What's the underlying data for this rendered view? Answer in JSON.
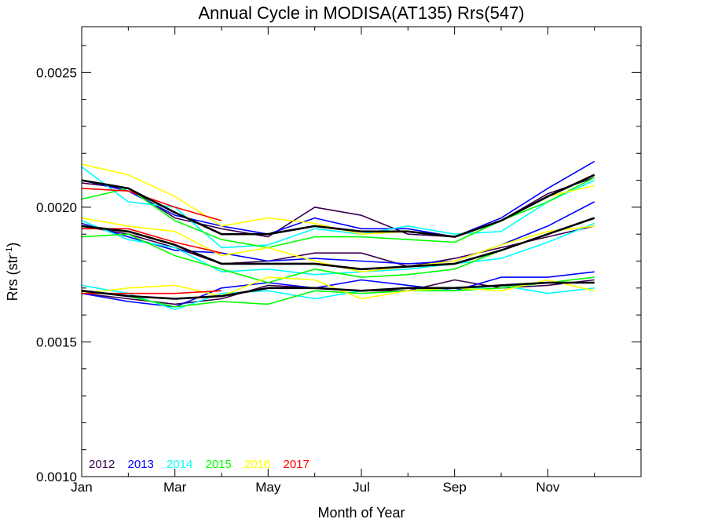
{
  "chart_data": {
    "type": "line",
    "title": "Annual Cycle in MODISA(AT135) Rrs(547)",
    "xlabel": "Month of Year",
    "ylabel_base": "Rrs (str",
    "ylabel_sup": "-1",
    "ylabel_end": ")",
    "xlim": [
      1,
      13
    ],
    "ylim": [
      0.001,
      0.00267
    ],
    "x_ticks": [
      {
        "value": 1,
        "label": "Jan"
      },
      {
        "value": 3,
        "label": "Mar"
      },
      {
        "value": 5,
        "label": "May"
      },
      {
        "value": 7,
        "label": "Jul"
      },
      {
        "value": 9,
        "label": "Sep"
      },
      {
        "value": 11,
        "label": "Nov"
      }
    ],
    "y_ticks": [
      {
        "value": 0.001,
        "label": "0.0010"
      },
      {
        "value": 0.0015,
        "label": "0.0015"
      },
      {
        "value": 0.002,
        "label": "0.0020"
      },
      {
        "value": 0.0025,
        "label": "0.0025"
      }
    ],
    "legend_position": "bottom-left",
    "x": [
      1,
      2,
      3,
      4,
      5,
      6,
      7,
      8,
      9,
      10,
      11,
      12
    ],
    "series": [
      {
        "name": "2012",
        "color": "#3a0050",
        "values": [
          0.00209,
          0.00207,
          0.00196,
          0.00192,
          0.00189,
          0.002,
          0.00197,
          0.0019,
          0.00189,
          0.00195,
          0.00205,
          0.00211
        ]
      },
      {
        "name": "2012",
        "color": "#3a0050",
        "values": [
          0.00193,
          0.0019,
          0.00185,
          0.00179,
          0.0018,
          0.00183,
          0.00183,
          0.00178,
          0.00181,
          0.00185,
          0.00189,
          0.00193
        ]
      },
      {
        "name": "2012",
        "color": "#3a0050",
        "values": [
          0.00168,
          0.00166,
          0.00164,
          0.00166,
          0.00171,
          0.0017,
          0.00169,
          0.00169,
          0.00173,
          0.0017,
          0.00171,
          0.00173
        ]
      },
      {
        "name": "2013",
        "color": "#0000ff",
        "values": [
          0.0021,
          0.00206,
          0.00197,
          0.00193,
          0.0019,
          0.00196,
          0.00192,
          0.00192,
          0.00189,
          0.00196,
          0.00207,
          0.00217
        ]
      },
      {
        "name": "2013",
        "color": "#0000ff",
        "values": [
          0.00194,
          0.00189,
          0.00184,
          0.00183,
          0.0018,
          0.00181,
          0.0018,
          0.00179,
          0.0018,
          0.00186,
          0.00193,
          0.00202
        ]
      },
      {
        "name": "2013",
        "color": "#0000ff",
        "values": [
          0.00168,
          0.00165,
          0.00163,
          0.0017,
          0.00172,
          0.0017,
          0.00173,
          0.00171,
          0.00169,
          0.00174,
          0.00174,
          0.00176
        ]
      },
      {
        "name": "2014",
        "color": "#00ffff",
        "values": [
          0.00215,
          0.00202,
          0.002,
          0.00185,
          0.00186,
          0.00192,
          0.0019,
          0.00193,
          0.0019,
          0.00191,
          0.00202,
          0.0021
        ]
      },
      {
        "name": "2014",
        "color": "#00ffff",
        "values": [
          0.00195,
          0.00188,
          0.00185,
          0.00176,
          0.00177,
          0.00175,
          0.00176,
          0.00177,
          0.00179,
          0.00181,
          0.00187,
          0.00194
        ]
      },
      {
        "name": "2014",
        "color": "#00ffff",
        "values": [
          0.00171,
          0.00168,
          0.00162,
          0.00168,
          0.00169,
          0.00166,
          0.00169,
          0.0017,
          0.00169,
          0.00171,
          0.00168,
          0.0017
        ]
      },
      {
        "name": "2015",
        "color": "#00ff00",
        "values": [
          0.00203,
          0.00207,
          0.00195,
          0.00188,
          0.00185,
          0.00189,
          0.00189,
          0.00188,
          0.00187,
          0.00195,
          0.00202,
          0.00211
        ]
      },
      {
        "name": "2015",
        "color": "#00ff00",
        "values": [
          0.00189,
          0.0019,
          0.00182,
          0.00177,
          0.00172,
          0.00177,
          0.00174,
          0.00175,
          0.00177,
          0.00184,
          0.0019,
          0.00196
        ]
      },
      {
        "name": "2015",
        "color": "#00ff00",
        "values": [
          0.00169,
          0.00167,
          0.00163,
          0.00165,
          0.00164,
          0.00169,
          0.00168,
          0.00169,
          0.00169,
          0.0017,
          0.00172,
          0.00174
        ]
      },
      {
        "name": "2016",
        "color": "#ffff00",
        "values": [
          0.00216,
          0.00212,
          0.00204,
          0.00193,
          0.00196,
          0.00194,
          0.0019,
          0.00191,
          0.00189,
          0.00195,
          0.00204,
          0.00208
        ]
      },
      {
        "name": "2016",
        "color": "#ffff00",
        "values": [
          0.00196,
          0.00193,
          0.00191,
          0.00182,
          0.00185,
          0.0018,
          0.00176,
          0.00178,
          0.0018,
          0.00186,
          0.00191,
          0.00193
        ]
      },
      {
        "name": "2016",
        "color": "#ffff00",
        "values": [
          0.00168,
          0.0017,
          0.00171,
          0.00167,
          0.00174,
          0.00173,
          0.00166,
          0.00169,
          0.0017,
          0.00169,
          0.00173,
          0.00169
        ]
      },
      {
        "name": "2017",
        "color": "#ff0000",
        "values": [
          0.00207,
          0.00206,
          0.002,
          0.00195,
          null,
          null,
          null,
          null,
          null,
          null,
          null,
          null
        ]
      },
      {
        "name": "2017",
        "color": "#ff0000",
        "values": [
          0.00192,
          0.00192,
          0.00187,
          0.00183,
          null,
          null,
          null,
          null,
          null,
          null,
          null,
          null
        ]
      },
      {
        "name": "2017",
        "color": "#ff0000",
        "values": [
          0.00168,
          0.00168,
          0.00168,
          0.00169,
          null,
          null,
          null,
          null,
          null,
          null,
          null,
          null
        ]
      },
      {
        "name": "",
        "color": "#000000",
        "width": 2.6,
        "values": [
          0.0021,
          0.00207,
          0.00198,
          0.0019,
          0.0019,
          0.00193,
          0.00191,
          0.00191,
          0.00189,
          0.00195,
          0.00204,
          0.00212
        ]
      },
      {
        "name": "",
        "color": "#000000",
        "width": 2.6,
        "values": [
          0.00193,
          0.00191,
          0.00186,
          0.00179,
          0.00179,
          0.00179,
          0.00177,
          0.00178,
          0.00179,
          0.00184,
          0.0019,
          0.00196
        ]
      },
      {
        "name": "",
        "color": "#000000",
        "width": 2.6,
        "values": [
          0.00169,
          0.00167,
          0.00166,
          0.00167,
          0.0017,
          0.0017,
          0.00169,
          0.0017,
          0.0017,
          0.00171,
          0.00172,
          0.00172
        ]
      }
    ],
    "legend": [
      {
        "label": "2012",
        "color": "#3a0050"
      },
      {
        "label": "2013",
        "color": "#0000ff"
      },
      {
        "label": "2014",
        "color": "#00ffff"
      },
      {
        "label": "2015",
        "color": "#00ff00"
      },
      {
        "label": "2016",
        "color": "#ffff00"
      },
      {
        "label": "2017",
        "color": "#ff0000"
      }
    ]
  }
}
